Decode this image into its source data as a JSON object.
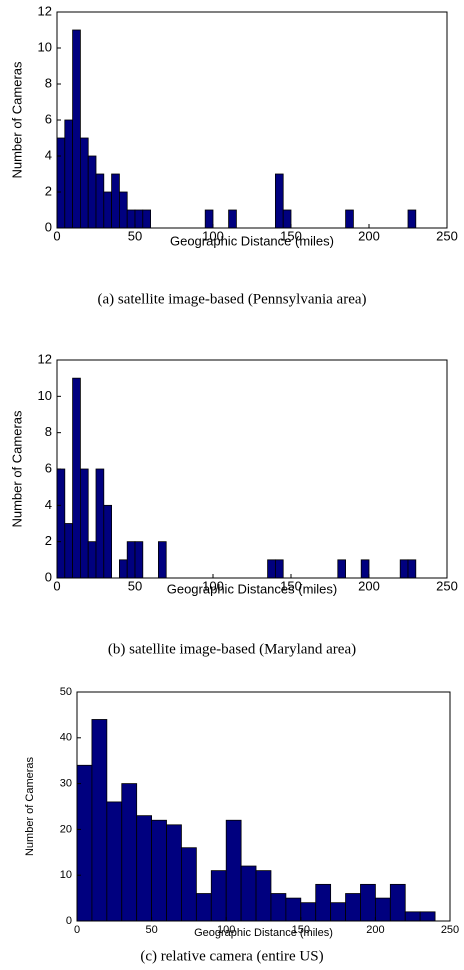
{
  "chart_data": [
    {
      "type": "histogram",
      "xlabel": "Geographic Distance (miles)",
      "ylabel": "Number of Cameras",
      "caption": "(a)  satellite image-based (Pennsylvania area)",
      "bins": [
        0,
        5,
        10,
        15,
        20,
        25,
        30,
        35,
        40,
        45,
        50,
        55,
        60,
        65,
        70,
        75,
        80,
        85,
        90,
        95,
        100,
        105,
        110,
        115,
        120,
        125,
        130,
        135,
        140,
        145,
        150,
        155,
        160,
        165,
        170,
        175,
        180,
        185,
        190,
        195,
        200,
        205,
        210,
        215,
        220,
        225,
        230
      ],
      "values": [
        5,
        6,
        11,
        5,
        4,
        3,
        2,
        3,
        2,
        1,
        1,
        1,
        0,
        0,
        0,
        0,
        0,
        0,
        0,
        1,
        0,
        0,
        1,
        0,
        0,
        0,
        0,
        0,
        3,
        1,
        0,
        0,
        0,
        0,
        0,
        0,
        0,
        1,
        0,
        0,
        0,
        0,
        0,
        0,
        0,
        1
      ],
      "color": "#00007f",
      "xlim": [
        0,
        250
      ],
      "xticks": [
        0,
        50,
        100,
        150,
        200,
        250
      ],
      "ylim": [
        0,
        12
      ],
      "yticks": [
        0,
        2,
        4,
        6,
        8,
        10,
        12
      ]
    },
    {
      "type": "histogram",
      "xlabel": "Geographic Distances (miles)",
      "ylabel": "Number of Cameras",
      "caption": "(b)  satellite image-based (Maryland area)",
      "bins": [
        0,
        5,
        10,
        15,
        20,
        25,
        30,
        35,
        40,
        45,
        50,
        55,
        60,
        65,
        70,
        75,
        80,
        85,
        90,
        95,
        100,
        105,
        110,
        115,
        120,
        125,
        130,
        135,
        140,
        145,
        150,
        155,
        160,
        165,
        170,
        175,
        180,
        185,
        190,
        195,
        200,
        205,
        210,
        215,
        220,
        225,
        230
      ],
      "values": [
        6,
        3,
        11,
        6,
        2,
        6,
        4,
        0,
        1,
        2,
        2,
        0,
        0,
        2,
        0,
        0,
        0,
        0,
        0,
        0,
        0,
        0,
        0,
        0,
        0,
        0,
        0,
        1,
        1,
        0,
        0,
        0,
        0,
        0,
        0,
        0,
        1,
        0,
        0,
        1,
        0,
        0,
        0,
        0,
        1,
        1
      ],
      "color": "#00007f",
      "xlim": [
        0,
        250
      ],
      "xticks": [
        0,
        50,
        100,
        150,
        200,
        250
      ],
      "ylim": [
        0,
        12
      ],
      "yticks": [
        0,
        2,
        4,
        6,
        8,
        10,
        12
      ]
    },
    {
      "type": "histogram",
      "xlabel": "Geographic Distance (miles)",
      "ylabel": "Number of Cameras",
      "caption": "(c)  relative camera (entire US)",
      "bins": [
        0,
        10,
        20,
        30,
        40,
        50,
        60,
        70,
        80,
        90,
        100,
        110,
        120,
        130,
        140,
        150,
        160,
        170,
        180,
        190,
        200,
        210,
        220,
        230,
        240
      ],
      "values": [
        34,
        44,
        26,
        30,
        23,
        22,
        21,
        16,
        6,
        11,
        22,
        12,
        11,
        6,
        5,
        4,
        8,
        4,
        6,
        8,
        5,
        8,
        2,
        2
      ],
      "color": "#00007f",
      "xlim": [
        0,
        250
      ],
      "xticks": [
        0,
        50,
        100,
        150,
        200,
        250
      ],
      "ylim": [
        0,
        50
      ],
      "yticks": [
        0,
        10,
        20,
        30,
        40,
        50
      ]
    }
  ]
}
